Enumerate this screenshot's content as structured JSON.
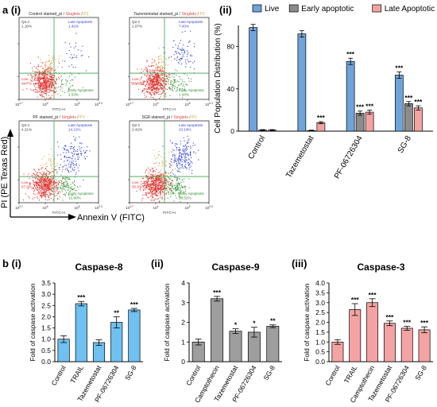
{
  "labels": {
    "panel_a_i": "a (i)",
    "panel_a_ii": "(ii)",
    "panel_b_i": "b (i)",
    "panel_b_ii": "(ii)",
    "panel_b_iii": "(iii)",
    "y_axis_arrow": "PI (PE Texas Red)",
    "x_axis_arrow": "Annexin V (FITC)"
  },
  "flow_plots": [
    {
      "title_prefix": "Control stained_pi",
      "title_suffix": "Singlets",
      "q2_1": "Q2-1",
      "q2_1_val": "1.10%",
      "late": "Late Apoptosis",
      "late_val": "1.42%",
      "live": "Live",
      "live_val": "94.7%",
      "early": "Early Apoptosis",
      "early_val": "2.53%",
      "xlabel": "FITC-H",
      "dot_color_live": "#e0342f",
      "dot_color_late": "#2d3fd6",
      "dot_color_early": "#3a9a3a",
      "dot_color_dead": "#d9a441",
      "shift": 0
    },
    {
      "title_prefix": "Tazemetostat stained_pi",
      "title_suffix": "Singlets",
      "q2_1": "Q2-1",
      "q2_1_val": "1.07%",
      "late": "Late Apoptosis",
      "late_val": "7.43%",
      "live": "Live",
      "live_val": "90.06%",
      "early": "Early Apoptosis",
      "early_val": "1.44%",
      "xlabel": "FITC-H",
      "shift": 1
    },
    {
      "title_prefix": "PF stained_pi",
      "title_suffix": "Singlets",
      "q2_1": "Q2-1",
      "q2_1_val": "4.21%",
      "late": "Late Apoptosis",
      "late_val": "14.12%",
      "live": "Live",
      "live_val": "67.8%",
      "early": "Early Apoptosis",
      "early_val": "13.90%",
      "xlabel": "FITC-H",
      "shift": 2
    },
    {
      "title_prefix": "SG8 stained_pi",
      "title_suffix": "Singlets",
      "q2_1": "Q2-1",
      "q2_1_val": "2.42%",
      "late": "Late Apoptosis",
      "late_val": "23.19%",
      "live": "Live",
      "live_val": "55.9%",
      "early": "Early Apoptosis",
      "early_val": "18.52%",
      "xlabel": "FITC-H",
      "shift": 3
    }
  ],
  "flow_ticks": [
    "10^4.7",
    "10^6",
    "10^8",
    "10^9.3"
  ],
  "chart_data": [
    {
      "type": "bar",
      "panel": "a(ii)",
      "title": "",
      "ylabel": "Cell Population Distribution (%)",
      "ylim": [
        0,
        100
      ],
      "yticks": [
        "0",
        "40",
        "80"
      ],
      "ytick_values": [
        0,
        40,
        80
      ],
      "categories": [
        "Control",
        "Tazemetostat",
        "PF-06726304",
        "SG-8"
      ],
      "legend_position": "top",
      "series": [
        {
          "name": "Live",
          "color": "#6fa4d9",
          "values": [
            98,
            92,
            66,
            53
          ],
          "errors": [
            3,
            3,
            3,
            3
          ],
          "sig": [
            "",
            "",
            "***",
            "***"
          ]
        },
        {
          "name": "Early apoptotic",
          "color": "#8c8c8c",
          "values": [
            1,
            0.5,
            17,
            26
          ],
          "errors": [
            0.5,
            0.5,
            2,
            2
          ],
          "sig": [
            "",
            "",
            "***",
            "***"
          ]
        },
        {
          "name": "Late Apoptotic",
          "color": "#f4a3a3",
          "values": [
            1,
            8,
            18,
            22
          ],
          "errors": [
            0.5,
            1,
            2,
            2
          ],
          "sig": [
            "",
            "***",
            "***",
            "***"
          ]
        }
      ]
    },
    {
      "type": "bar",
      "panel": "b(i)",
      "title": "Caspase-8",
      "ylabel": "Fold of caspase activation",
      "ylim": [
        0,
        3.5
      ],
      "yticks": [
        "0.0",
        "0.5",
        "1.0",
        "1.5",
        "2.0",
        "2.5",
        "3.0",
        "3.5"
      ],
      "ytick_values": [
        0,
        0.5,
        1.0,
        1.5,
        2.0,
        2.5,
        3.0,
        3.5
      ],
      "color": "#6ec1f0",
      "categories": [
        "Control",
        "TRAIL",
        "Tazemetostat",
        "PF-06726304",
        "SG-8"
      ],
      "values": [
        1.0,
        2.58,
        0.85,
        1.75,
        2.3
      ],
      "errors": [
        0.15,
        0.1,
        0.12,
        0.25,
        0.07
      ],
      "sig": [
        "",
        "***",
        "",
        "**",
        "***"
      ]
    },
    {
      "type": "bar",
      "panel": "b(ii)",
      "title": "Caspase-9",
      "ylabel": "Fold of caspase activation",
      "ylim": [
        0,
        4
      ],
      "yticks": [
        "0",
        "1",
        "2",
        "3",
        "4"
      ],
      "ytick_values": [
        0,
        1,
        2,
        3,
        4
      ],
      "color": "#9e9e9e",
      "categories": [
        "Control",
        "Camptothecin",
        "Tazemetostat",
        "PF-06726304",
        "SG-8"
      ],
      "values": [
        1.0,
        3.2,
        1.55,
        1.5,
        1.8
      ],
      "errors": [
        0.15,
        0.12,
        0.12,
        0.25,
        0.07
      ],
      "sig": [
        "",
        "***",
        "*",
        "*",
        "**"
      ]
    },
    {
      "type": "bar",
      "panel": "b(iii)",
      "title": "Caspase-3",
      "ylabel": "Fold of caspase activation",
      "ylim": [
        0,
        4.0
      ],
      "yticks": [
        "0.0",
        "0.5",
        "1.0",
        "1.5",
        "2.0",
        "2.5",
        "3.0",
        "3.5",
        "4.0"
      ],
      "ytick_values": [
        0,
        0.5,
        1.0,
        1.5,
        2.0,
        2.5,
        3.0,
        3.5,
        4.0
      ],
      "color": "#f4a3a3",
      "categories": [
        "Control",
        "TRAIL",
        "Camptothecin",
        "Tazemetostat",
        "PF-06726304",
        "SG-8"
      ],
      "values": [
        1.0,
        2.65,
        3.0,
        1.95,
        1.7,
        1.62
      ],
      "errors": [
        0.12,
        0.3,
        0.2,
        0.12,
        0.1,
        0.15
      ],
      "sig": [
        "",
        "***",
        "***",
        "***",
        "***",
        "***"
      ]
    }
  ]
}
